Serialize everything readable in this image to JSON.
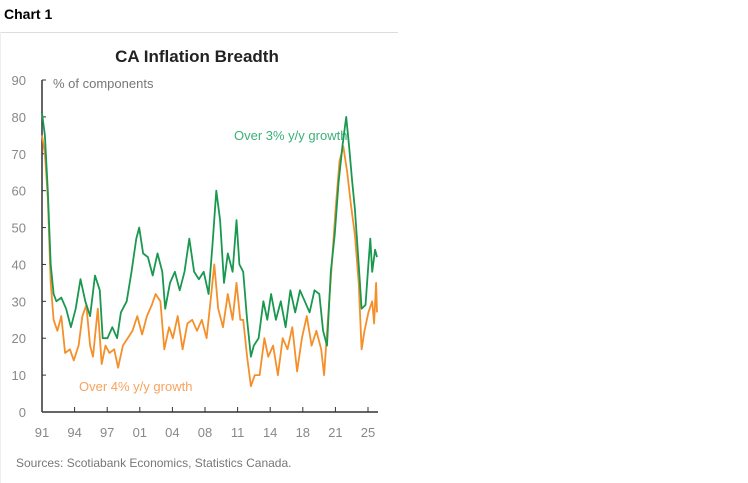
{
  "header": {
    "label": "Chart 1"
  },
  "chart_data": {
    "type": "line",
    "title": "CA Inflation Breadth",
    "ylabel": "% of components",
    "ylim": [
      0,
      90
    ],
    "yticks": [
      0,
      10,
      20,
      30,
      40,
      50,
      60,
      70,
      80,
      90
    ],
    "xlim": [
      1991,
      2025.9
    ],
    "xtick_labels": [
      "91",
      "94",
      "97",
      "01",
      "04",
      "08",
      "11",
      "14",
      "18",
      "21",
      "25"
    ],
    "grid": false,
    "source": "Sources: Scotiabank Economics, Statistics Canada.",
    "series": [
      {
        "name": "Over 3% y/y growth",
        "color": "#1a9850",
        "x": [
          1991,
          1991.3,
          1991.6,
          1991.9,
          1992.2,
          1992.5,
          1993,
          1993.5,
          1994,
          1994.5,
          1995,
          1995.5,
          1996,
          1996.5,
          1997,
          1997.3,
          1997.8,
          1998.3,
          1998.8,
          1999.2,
          1999.8,
          2000.3,
          2000.8,
          2001.1,
          2001.5,
          2002,
          2002.5,
          2003,
          2003.5,
          2003.8,
          2004.3,
          2004.8,
          2005.3,
          2005.8,
          2006.3,
          2006.8,
          2007.3,
          2007.8,
          2008.3,
          2008.7,
          2009.1,
          2009.5,
          2009.9,
          2010.3,
          2010.8,
          2011.2,
          2011.5,
          2011.9,
          2012.3,
          2012.7,
          2013,
          2013.5,
          2014,
          2014.4,
          2014.8,
          2015.3,
          2015.8,
          2016.3,
          2016.8,
          2017.3,
          2017.8,
          2018.3,
          2018.8,
          2019.3,
          2019.8,
          2020.2,
          2020.6,
          2021,
          2021.4,
          2021.8,
          2022.2,
          2022.6,
          2022.9,
          2023.2,
          2023.5,
          2023.9,
          2024.2,
          2024.6,
          2024.9,
          2025.1,
          2025.3,
          2025.6,
          2025.8
        ],
        "values": [
          81,
          75,
          60,
          40,
          32,
          30,
          31,
          28,
          23,
          28,
          36,
          30,
          26,
          37,
          33,
          20,
          20,
          23,
          20,
          27,
          30,
          38,
          47,
          50,
          43,
          42,
          37,
          43,
          38,
          28,
          35,
          38,
          33,
          38,
          47,
          38,
          36,
          38,
          32,
          45,
          60,
          52,
          35,
          43,
          38,
          52,
          40,
          38,
          25,
          15,
          18,
          20,
          30,
          25,
          32,
          25,
          30,
          23,
          33,
          27,
          33,
          30,
          27,
          33,
          32,
          22,
          18,
          38,
          48,
          62,
          72,
          80,
          72,
          63,
          55,
          40,
          28,
          29,
          40,
          47,
          38,
          44,
          42
        ]
      },
      {
        "name": "Over 4%  y/y growth",
        "color": "#f58f2a",
        "x": [
          1991,
          1991.3,
          1991.6,
          1991.9,
          1992.2,
          1992.6,
          1993,
          1993.4,
          1993.9,
          1994.3,
          1994.8,
          1995.2,
          1995.6,
          1996,
          1996.3,
          1996.8,
          1997.2,
          1997.6,
          1998,
          1998.5,
          1998.9,
          1999.4,
          1999.9,
          2000.4,
          2000.9,
          2001.4,
          2001.9,
          2002.4,
          2002.8,
          2003.3,
          2003.7,
          2004.2,
          2004.6,
          2005.1,
          2005.6,
          2006.1,
          2006.6,
          2007.1,
          2007.6,
          2008.1,
          2008.5,
          2008.9,
          2009.3,
          2009.8,
          2010.3,
          2010.8,
          2011.2,
          2011.6,
          2011.9,
          2012.3,
          2012.7,
          2013.1,
          2013.6,
          2014.1,
          2014.5,
          2015,
          2015.5,
          2016,
          2016.5,
          2017,
          2017.5,
          2018,
          2018.5,
          2019,
          2019.5,
          2020,
          2020.3,
          2020.7,
          2021.1,
          2021.5,
          2021.9,
          2022.3,
          2022.7,
          2023.1,
          2023.5,
          2023.9,
          2024.2,
          2024.5,
          2024.9,
          2025.3,
          2025.5,
          2025.7,
          2025.8
        ],
        "values": [
          75,
          70,
          58,
          35,
          25,
          22,
          26,
          16,
          17,
          14,
          18,
          26,
          29,
          18,
          15,
          28,
          13,
          18,
          16,
          17,
          12,
          18,
          20,
          22,
          26,
          21,
          26,
          29,
          32,
          30,
          17,
          23,
          20,
          26,
          17,
          24,
          25,
          22,
          25,
          20,
          30,
          40,
          28,
          23,
          32,
          25,
          35,
          25,
          25,
          15,
          7,
          10,
          10,
          20,
          15,
          18,
          10,
          20,
          17,
          23,
          11,
          20,
          26,
          18,
          22,
          17,
          10,
          25,
          40,
          55,
          68,
          72,
          65,
          56,
          48,
          35,
          17,
          22,
          27,
          30,
          24,
          35,
          27
        ]
      }
    ]
  }
}
